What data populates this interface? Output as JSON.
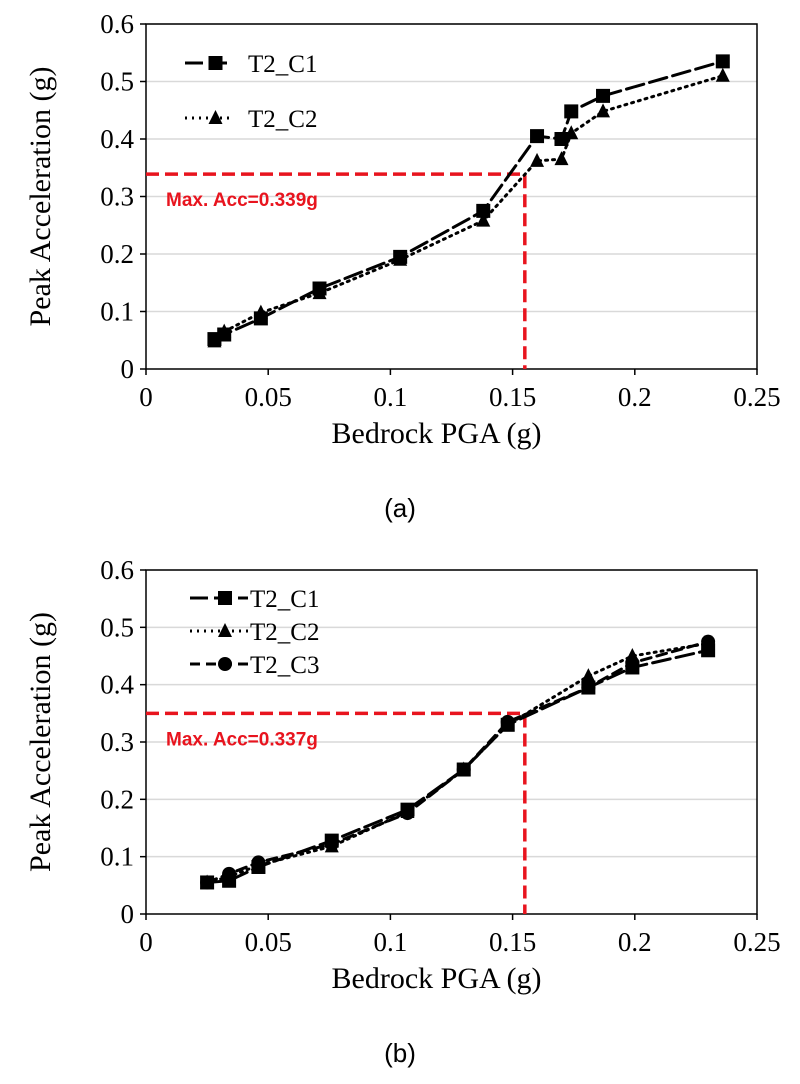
{
  "chart_data": [
    {
      "type": "line",
      "caption": "(a)",
      "xlabel": "Bedrock PGA (g)",
      "ylabel": "Peak Acceleration (g)",
      "xlim": [
        0,
        0.25
      ],
      "ylim": [
        0,
        0.6
      ],
      "xticks": [
        "0",
        "0.05",
        "0.1",
        "0.15",
        "0.2",
        "0.25"
      ],
      "yticks": [
        "0",
        "0.1",
        "0.2",
        "0.3",
        "0.4",
        "0.5",
        "0.6"
      ],
      "grid": "horizontal",
      "legend_position": "top-left",
      "series": [
        {
          "name": "T2_C1",
          "marker": "square",
          "line": "long-dash",
          "points": [
            [
              0.028,
              0.052
            ],
            [
              0.032,
              0.06
            ],
            [
              0.047,
              0.088
            ],
            [
              0.071,
              0.14
            ],
            [
              0.104,
              0.195
            ],
            [
              0.138,
              0.275
            ],
            [
              0.16,
              0.405
            ],
            [
              0.17,
              0.4
            ],
            [
              0.174,
              0.448
            ],
            [
              0.187,
              0.475
            ],
            [
              0.236,
              0.535
            ]
          ]
        },
        {
          "name": "T2_C2",
          "marker": "triangle",
          "line": "dotted",
          "points": [
            [
              0.028,
              0.048
            ],
            [
              0.032,
              0.065
            ],
            [
              0.047,
              0.098
            ],
            [
              0.071,
              0.132
            ],
            [
              0.104,
              0.19
            ],
            [
              0.138,
              0.258
            ],
            [
              0.16,
              0.362
            ],
            [
              0.17,
              0.365
            ],
            [
              0.174,
              0.41
            ],
            [
              0.187,
              0.448
            ],
            [
              0.236,
              0.51
            ]
          ]
        }
      ],
      "annotation": {
        "text": "Max. Acc=0.339g",
        "x": 0.155,
        "y": 0.339,
        "color": "#e8141e"
      }
    },
    {
      "type": "line",
      "caption": "(b)",
      "xlabel": "Bedrock PGA (g)",
      "ylabel": "Peak Acceleration (g)",
      "xlim": [
        0,
        0.25
      ],
      "ylim": [
        0,
        0.6
      ],
      "xticks": [
        "0",
        "0.05",
        "0.1",
        "0.15",
        "0.2",
        "0.25"
      ],
      "yticks": [
        "0",
        "0.1",
        "0.2",
        "0.3",
        "0.4",
        "0.5",
        "0.6"
      ],
      "grid": "horizontal",
      "legend_position": "top-left",
      "series": [
        {
          "name": "T2_C1",
          "marker": "square",
          "line": "long-dash",
          "points": [
            [
              0.025,
              0.055
            ],
            [
              0.034,
              0.058
            ],
            [
              0.046,
              0.082
            ],
            [
              0.076,
              0.128
            ],
            [
              0.107,
              0.182
            ],
            [
              0.13,
              0.252
            ],
            [
              0.148,
              0.33
            ],
            [
              0.181,
              0.395
            ],
            [
              0.199,
              0.43
            ],
            [
              0.23,
              0.46
            ]
          ]
        },
        {
          "name": "T2_C2",
          "marker": "triangle",
          "line": "dotted",
          "points": [
            [
              0.025,
              0.055
            ],
            [
              0.034,
              0.065
            ],
            [
              0.046,
              0.085
            ],
            [
              0.076,
              0.118
            ],
            [
              0.107,
              0.178
            ],
            [
              0.13,
              0.252
            ],
            [
              0.148,
              0.33
            ],
            [
              0.181,
              0.415
            ],
            [
              0.199,
              0.45
            ],
            [
              0.23,
              0.472
            ]
          ]
        },
        {
          "name": "T2_C3",
          "marker": "circle",
          "line": "dashed",
          "points": [
            [
              0.025,
              0.055
            ],
            [
              0.034,
              0.07
            ],
            [
              0.046,
              0.09
            ],
            [
              0.076,
              0.122
            ],
            [
              0.107,
              0.176
            ],
            [
              0.13,
              0.252
            ],
            [
              0.148,
              0.335
            ],
            [
              0.181,
              0.395
            ],
            [
              0.199,
              0.438
            ],
            [
              0.23,
              0.475
            ]
          ]
        }
      ],
      "annotation": {
        "text": "Max. Acc=0.337g",
        "x": 0.155,
        "y": 0.35,
        "color": "#e8141e"
      }
    }
  ]
}
